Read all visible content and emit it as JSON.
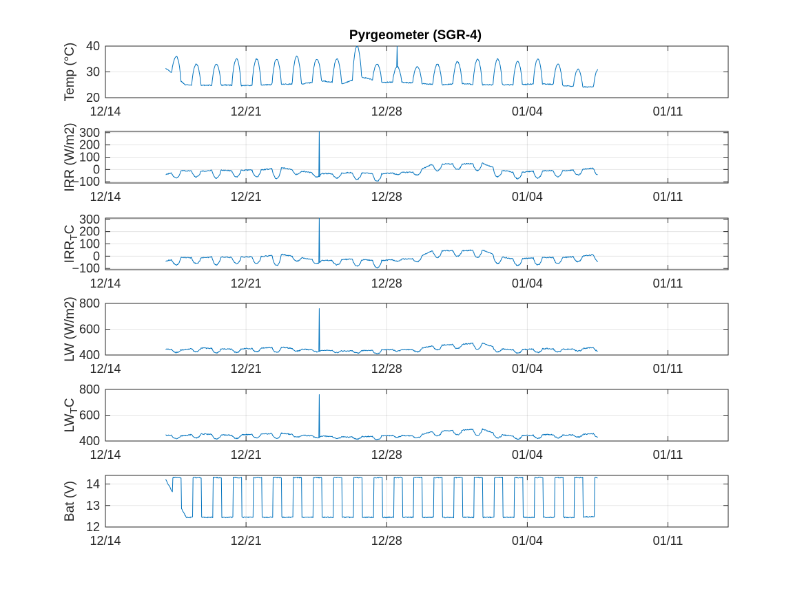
{
  "title": "Pyrgeometer (SGR-4)",
  "colors": {
    "series": "#0072BD",
    "axis": "#262626",
    "background": "#ffffff"
  },
  "chart_data": [
    {
      "type": "line",
      "ylabel": "Temp (°C)",
      "ylabel_parts": [],
      "grid": true,
      "xlim": [
        "2023-12-14",
        "2024-01-14"
      ],
      "x_ticks": [
        "12/14",
        "12/21",
        "12/28",
        "01/04",
        "01/11"
      ],
      "ylim": [
        20,
        40
      ],
      "y_ticks": [
        "20",
        "30",
        "40"
      ],
      "series": [
        {
          "x_start": "2023-12-17T00:00",
          "x_end": "2024-01-07T12:00",
          "baseline": [
            31.5,
            25.0,
            24.8,
            24.9,
            24.7,
            25.0,
            25.2,
            25.4,
            26.5,
            25.5,
            28.0,
            26.0,
            26.0,
            25.5,
            25.0,
            25.5,
            25.0,
            25.0,
            25.0,
            25.5,
            25.0,
            24.0,
            24.4
          ],
          "peaks": [
            36,
            33,
            33,
            35,
            35,
            35,
            36,
            35,
            35,
            40,
            33,
            32,
            32,
            33,
            34,
            35,
            35,
            34,
            35,
            33,
            31
          ],
          "spikes": [
            {
              "x": "2023-12-28T12:00",
              "y": 41.5
            }
          ]
        }
      ]
    },
    {
      "type": "line",
      "ylabel": "IRR (W/m2)",
      "ylabel_parts": [],
      "grid": true,
      "xlim": [
        "2023-12-14",
        "2024-01-14"
      ],
      "x_ticks": [
        "12/14",
        "12/21",
        "12/28",
        "01/04",
        "01/11"
      ],
      "ylim": [
        -110,
        310
      ],
      "y_ticks": [
        "-100",
        "0",
        "100",
        "200",
        "300"
      ],
      "series": [
        {
          "x_start": "2023-12-17T00:00",
          "x_end": "2024-01-07T12:00",
          "baseline": [
            -40,
            -10,
            -15,
            -5,
            -10,
            -5,
            0,
            15,
            -10,
            -30,
            -35,
            -25,
            -30,
            -35,
            -25,
            -20,
            40,
            45,
            45,
            55,
            0,
            -25,
            -15,
            -10,
            -10,
            0,
            15
          ],
          "peaks": [
            -70,
            -60,
            -70,
            -60,
            -60,
            -75,
            -40,
            -60,
            -70,
            -80,
            -95,
            -40,
            -45,
            -10,
            0,
            -10,
            -60,
            -75,
            -70,
            -60,
            -45
          ],
          "spikes": [
            {
              "x": "2023-12-24T15:00",
              "y": 310
            }
          ]
        }
      ]
    },
    {
      "type": "line",
      "ylabel": "IRR_TC",
      "ylabel_parts": [
        {
          "text": "IRR",
          "style": "normal"
        },
        {
          "text": "T",
          "style": "sub"
        },
        {
          "text": "C",
          "style": "normal"
        }
      ],
      "grid": true,
      "xlim": [
        "2023-12-14",
        "2024-01-14"
      ],
      "x_ticks": [
        "12/14",
        "12/21",
        "12/28",
        "01/04",
        "01/11"
      ],
      "ylim": [
        -110,
        310
      ],
      "y_ticks": [
        "-100",
        "0",
        "100",
        "200",
        "300"
      ],
      "series": [
        {
          "x_start": "2023-12-17T00:00",
          "x_end": "2024-01-07T12:00",
          "baseline": [
            -40,
            -10,
            -15,
            -5,
            -10,
            -5,
            0,
            15,
            -10,
            -30,
            -35,
            -25,
            -30,
            -35,
            -25,
            -20,
            40,
            45,
            45,
            55,
            0,
            -25,
            -15,
            -10,
            -10,
            0,
            15
          ],
          "peaks": [
            -70,
            -60,
            -70,
            -60,
            -60,
            -75,
            -40,
            -60,
            -70,
            -80,
            -95,
            -40,
            -45,
            -10,
            0,
            -10,
            -60,
            -75,
            -70,
            -60,
            -45
          ],
          "spikes": [
            {
              "x": "2023-12-24T15:00",
              "y": 310
            }
          ]
        }
      ]
    },
    {
      "type": "line",
      "ylabel": "LW (W/m2)",
      "ylabel_parts": [],
      "grid": true,
      "xlim": [
        "2023-12-14",
        "2024-01-14"
      ],
      "x_ticks": [
        "12/14",
        "12/21",
        "12/28",
        "01/04",
        "01/11"
      ],
      "ylim": [
        400,
        800
      ],
      "y_ticks": [
        "400",
        "600",
        "800"
      ],
      "series": [
        {
          "x_start": "2023-12-17T00:00",
          "x_end": "2024-01-07T12:00",
          "baseline": [
            445,
            440,
            455,
            450,
            445,
            450,
            455,
            460,
            445,
            440,
            435,
            430,
            435,
            440,
            445,
            440,
            470,
            480,
            485,
            495,
            450,
            440,
            445,
            450,
            445,
            450,
            460
          ],
          "peaks": [
            420,
            425,
            415,
            420,
            425,
            420,
            430,
            425,
            420,
            415,
            410,
            430,
            425,
            440,
            450,
            445,
            425,
            415,
            420,
            425,
            430
          ],
          "spikes": [
            {
              "x": "2023-12-24T15:00",
              "y": 760
            }
          ]
        }
      ]
    },
    {
      "type": "line",
      "ylabel": "LW_TC",
      "ylabel_parts": [
        {
          "text": "LW",
          "style": "normal"
        },
        {
          "text": "T",
          "style": "sub"
        },
        {
          "text": "C",
          "style": "normal"
        }
      ],
      "grid": true,
      "xlim": [
        "2023-12-14",
        "2024-01-14"
      ],
      "x_ticks": [
        "12/14",
        "12/21",
        "12/28",
        "01/04",
        "01/11"
      ],
      "ylim": [
        400,
        800
      ],
      "y_ticks": [
        "400",
        "600",
        "800"
      ],
      "series": [
        {
          "x_start": "2023-12-17T00:00",
          "x_end": "2024-01-07T12:00",
          "baseline": [
            445,
            440,
            455,
            450,
            445,
            450,
            455,
            460,
            445,
            440,
            435,
            430,
            435,
            440,
            445,
            440,
            470,
            480,
            485,
            495,
            450,
            440,
            445,
            450,
            445,
            450,
            460
          ],
          "peaks": [
            420,
            425,
            415,
            420,
            425,
            420,
            430,
            425,
            420,
            415,
            410,
            430,
            425,
            440,
            450,
            445,
            425,
            415,
            420,
            425,
            430
          ],
          "spikes": [
            {
              "x": "2023-12-24T15:00",
              "y": 760
            }
          ]
        }
      ]
    },
    {
      "type": "line",
      "ylabel": "Bat (V)",
      "ylabel_parts": [],
      "grid": true,
      "xlim": [
        "2023-12-14",
        "2024-01-14"
      ],
      "x_ticks": [
        "12/14",
        "12/21",
        "12/28",
        "01/04",
        "01/11"
      ],
      "ylim": [
        12,
        14.4
      ],
      "y_ticks": [
        "12",
        "13",
        "14"
      ],
      "series": [
        {
          "x_start": "2023-12-17T00:00",
          "x_end": "2024-01-07T12:00",
          "baseline": [
            14.2,
            12.45,
            12.45,
            12.45,
            12.45,
            12.45,
            12.45,
            12.45,
            12.45,
            12.45,
            12.45,
            12.45,
            12.45,
            12.45,
            12.45,
            12.45,
            12.45,
            12.45,
            12.45,
            12.45,
            12.45,
            12.5
          ],
          "peaks": [
            14.3,
            14.3,
            14.3,
            14.3,
            14.3,
            14.3,
            14.3,
            14.3,
            14.3,
            14.3,
            14.3,
            14.3,
            14.3,
            14.3,
            14.3,
            14.3,
            14.3,
            14.3,
            14.3,
            14.3,
            14.3
          ],
          "spikes": []
        }
      ]
    }
  ]
}
